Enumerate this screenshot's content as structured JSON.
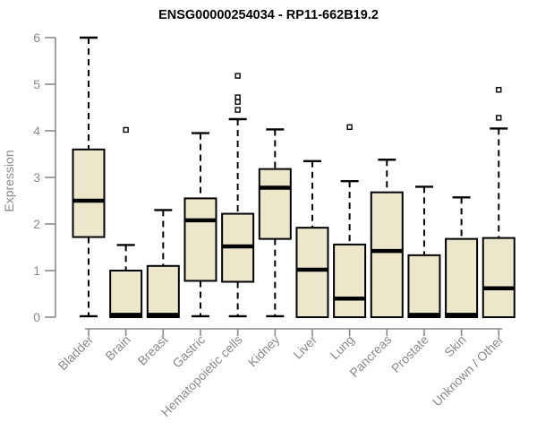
{
  "chart_data": {
    "type": "boxplot",
    "title": "ENSG00000254034 - RP11-662B19.2",
    "xlabel": "",
    "ylabel": "Expression",
    "ylim": [
      0,
      6
    ],
    "yticks": [
      0,
      1,
      2,
      3,
      4,
      5,
      6
    ],
    "grid": false,
    "legend": "none",
    "categories": [
      "Bladder",
      "Brain",
      "Breast",
      "Gastric",
      "Hematopoietic cells",
      "Kidney",
      "Liver",
      "Lung",
      "Pancreas",
      "Prostate",
      "Skin",
      "Unknown / Other"
    ],
    "series": [
      {
        "category": "Bladder",
        "whisker_low": 0.02,
        "q1": 1.72,
        "median": 2.5,
        "q3": 3.6,
        "whisker_high": 6.0,
        "outliers": []
      },
      {
        "category": "Brain",
        "whisker_low": 0.0,
        "q1": 0.0,
        "median": 0.05,
        "q3": 1.0,
        "whisker_high": 1.55,
        "outliers": [
          4.02
        ]
      },
      {
        "category": "Breast",
        "whisker_low": 0.0,
        "q1": 0.0,
        "median": 0.05,
        "q3": 1.1,
        "whisker_high": 2.3,
        "outliers": []
      },
      {
        "category": "Gastric",
        "whisker_low": 0.02,
        "q1": 0.78,
        "median": 2.08,
        "q3": 2.55,
        "whisker_high": 3.95,
        "outliers": []
      },
      {
        "category": "Hematopoietic cells",
        "whisker_low": 0.02,
        "q1": 0.76,
        "median": 1.52,
        "q3": 2.22,
        "whisker_high": 4.25,
        "outliers": [
          4.45,
          4.62,
          4.72,
          5.18
        ]
      },
      {
        "category": "Kidney",
        "whisker_low": 0.02,
        "q1": 1.68,
        "median": 2.78,
        "q3": 3.18,
        "whisker_high": 4.03,
        "outliers": []
      },
      {
        "category": "Liver",
        "whisker_low": 0.0,
        "q1": 0.0,
        "median": 1.02,
        "q3": 1.92,
        "whisker_high": 3.35,
        "outliers": []
      },
      {
        "category": "Lung",
        "whisker_low": 0.0,
        "q1": 0.0,
        "median": 0.4,
        "q3": 1.56,
        "whisker_high": 2.92,
        "outliers": [
          4.08
        ]
      },
      {
        "category": "Pancreas",
        "whisker_low": 0.0,
        "q1": 0.0,
        "median": 1.42,
        "q3": 2.68,
        "whisker_high": 3.38,
        "outliers": []
      },
      {
        "category": "Prostate",
        "whisker_low": 0.0,
        "q1": 0.0,
        "median": 0.05,
        "q3": 1.33,
        "whisker_high": 2.8,
        "outliers": []
      },
      {
        "category": "Skin",
        "whisker_low": 0.0,
        "q1": 0.0,
        "median": 0.05,
        "q3": 1.68,
        "whisker_high": 2.57,
        "outliers": []
      },
      {
        "category": "Unknown / Other",
        "whisker_low": 0.0,
        "q1": 0.0,
        "median": 0.62,
        "q3": 1.7,
        "whisker_high": 4.05,
        "outliers": [
          4.28,
          4.88
        ]
      }
    ],
    "colors": {
      "box_fill": "#ECE6CB",
      "box_stroke": "#000000",
      "median": "#000000",
      "whisker": "#000000",
      "outlier_stroke": "#000000",
      "outlier_fill": "#ffffff",
      "axis": "#8a8a8a",
      "tick_text": "#8a8a8a",
      "title_text": "#000000",
      "background": "#ffffff"
    }
  }
}
